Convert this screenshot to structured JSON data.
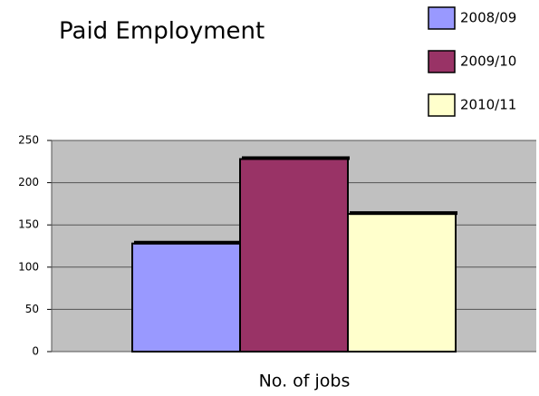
{
  "chart_data": {
    "type": "bar",
    "title": "Paid Employment",
    "x_label": "No. of jobs",
    "categories": [
      "No. of jobs"
    ],
    "series": [
      {
        "name": "2008/09",
        "color": "#9999ff",
        "values": [
          128
        ]
      },
      {
        "name": "2009/10",
        "color": "#993366",
        "values": [
          228
        ]
      },
      {
        "name": "2010/11",
        "color": "#ffffcc",
        "values": [
          163
        ]
      }
    ],
    "ylim": [
      0,
      250
    ],
    "yticks": [
      0,
      50,
      100,
      150,
      200,
      250
    ],
    "grid": true,
    "legend": "top-right",
    "background": "#c0c0c0"
  }
}
